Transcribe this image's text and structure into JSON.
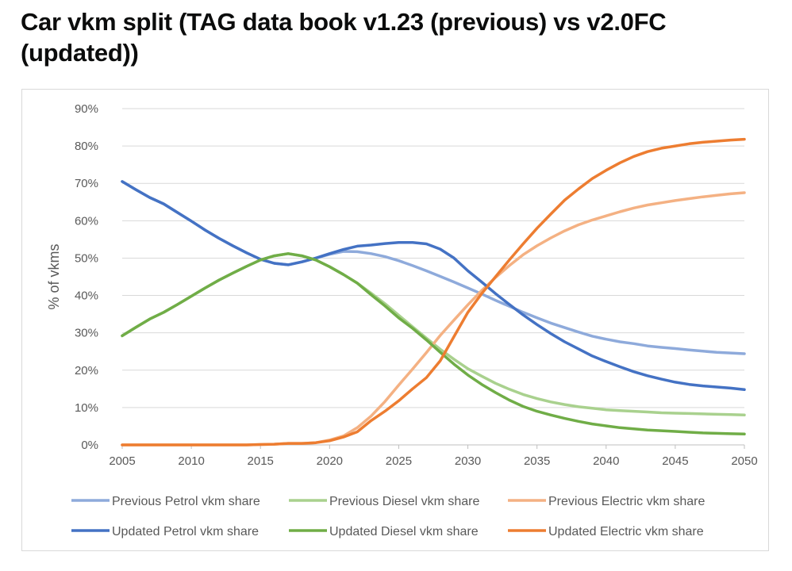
{
  "page": {
    "title": "Car vkm split (TAG data book v1.23 (previous) vs v2.0FC (updated))"
  },
  "chart_data": {
    "type": "line",
    "title": "Car vkm split (TAG data book v1.23 (previous) vs v2.0FC (updated))",
    "xlabel": "",
    "ylabel": "% of vkms",
    "xlim": [
      2005,
      2050
    ],
    "ylim": [
      0,
      90
    ],
    "x_ticks": [
      "2005",
      "2010",
      "2015",
      "2020",
      "2025",
      "2030",
      "2035",
      "2040",
      "2045",
      "2050"
    ],
    "y_ticks": [
      "0%",
      "10%",
      "20%",
      "30%",
      "40%",
      "50%",
      "60%",
      "70%",
      "80%",
      "90%"
    ],
    "grid": "horizontal",
    "legend_position": "bottom",
    "x": [
      2005,
      2006,
      2007,
      2008,
      2009,
      2010,
      2011,
      2012,
      2013,
      2014,
      2015,
      2016,
      2017,
      2018,
      2019,
      2020,
      2021,
      2022,
      2023,
      2024,
      2025,
      2026,
      2027,
      2028,
      2029,
      2030,
      2031,
      2032,
      2033,
      2034,
      2035,
      2036,
      2037,
      2038,
      2039,
      2040,
      2041,
      2042,
      2043,
      2044,
      2045,
      2046,
      2047,
      2048,
      2049,
      2050
    ],
    "series": [
      {
        "name": "Previous Petrol vkm share",
        "color": "#8eaadb",
        "width": 3.5,
        "values": [
          70.5,
          68.3,
          66.2,
          64.5,
          62.2,
          59.9,
          57.5,
          55.3,
          53.3,
          51.4,
          49.7,
          48.6,
          48.2,
          49.0,
          50.0,
          51.0,
          51.8,
          51.7,
          51.2,
          50.4,
          49.3,
          48.0,
          46.6,
          45.1,
          43.6,
          42.0,
          40.4,
          38.7,
          37.1,
          35.5,
          34.0,
          32.6,
          31.4,
          30.2,
          29.1,
          28.3,
          27.6,
          27.1,
          26.5,
          26.1,
          25.8,
          25.4,
          25.1,
          24.8,
          24.6,
          24.4
        ]
      },
      {
        "name": "Previous Diesel vkm share",
        "color": "#a9d18e",
        "width": 3.5,
        "values": [
          29.2,
          31.5,
          33.7,
          35.5,
          37.6,
          39.8,
          42.0,
          44.1,
          46.0,
          47.8,
          49.5,
          50.6,
          51.2,
          50.6,
          49.5,
          47.7,
          45.6,
          43.3,
          40.6,
          37.8,
          34.7,
          31.6,
          28.6,
          25.6,
          22.9,
          20.4,
          18.4,
          16.5,
          14.9,
          13.5,
          12.4,
          11.5,
          10.8,
          10.2,
          9.8,
          9.4,
          9.2,
          9.0,
          8.8,
          8.6,
          8.5,
          8.4,
          8.3,
          8.2,
          8.1,
          8.0
        ]
      },
      {
        "name": "Previous Electric vkm share",
        "color": "#f4b183",
        "width": 3.5,
        "values": [
          0.0,
          0.0,
          0.0,
          0.0,
          0.0,
          0.0,
          0.0,
          0.0,
          0.0,
          0.0,
          0.1,
          0.2,
          0.4,
          0.4,
          0.6,
          1.3,
          2.4,
          4.6,
          7.7,
          11.6,
          16.0,
          20.3,
          24.7,
          29.3,
          33.4,
          37.5,
          41.3,
          44.8,
          48.0,
          50.9,
          53.3,
          55.4,
          57.3,
          58.9,
          60.2,
          61.3,
          62.4,
          63.4,
          64.2,
          64.8,
          65.4,
          65.9,
          66.4,
          66.8,
          67.2,
          67.5
        ]
      },
      {
        "name": "Updated Petrol vkm share",
        "color": "#4472c4",
        "width": 3.5,
        "values": [
          70.5,
          68.3,
          66.2,
          64.5,
          62.2,
          59.9,
          57.5,
          55.3,
          53.3,
          51.4,
          49.7,
          48.6,
          48.2,
          49.0,
          50.0,
          51.2,
          52.3,
          53.2,
          53.5,
          53.9,
          54.2,
          54.2,
          53.8,
          52.4,
          50.0,
          46.6,
          43.6,
          40.5,
          37.6,
          34.8,
          32.2,
          29.8,
          27.6,
          25.7,
          23.8,
          22.3,
          20.9,
          19.6,
          18.5,
          17.6,
          16.8,
          16.2,
          15.8,
          15.5,
          15.2,
          14.8
        ]
      },
      {
        "name": "Updated Diesel vkm share",
        "color": "#70ad47",
        "width": 3.5,
        "values": [
          29.2,
          31.5,
          33.7,
          35.5,
          37.6,
          39.8,
          42.0,
          44.1,
          46.0,
          47.8,
          49.5,
          50.6,
          51.2,
          50.6,
          49.5,
          47.7,
          45.6,
          43.3,
          40.2,
          37.2,
          34.0,
          31.2,
          28.1,
          24.8,
          21.6,
          18.7,
          16.2,
          14.0,
          12.0,
          10.3,
          9.0,
          8.0,
          7.1,
          6.3,
          5.6,
          5.1,
          4.6,
          4.3,
          4.0,
          3.8,
          3.6,
          3.4,
          3.2,
          3.1,
          3.0,
          2.9
        ]
      },
      {
        "name": "Updated Electric vkm share",
        "color": "#ed7d31",
        "width": 3.5,
        "values": [
          0.0,
          0.0,
          0.0,
          0.0,
          0.0,
          0.0,
          0.0,
          0.0,
          0.0,
          0.0,
          0.1,
          0.2,
          0.4,
          0.4,
          0.6,
          1.1,
          2.1,
          3.5,
          6.5,
          9.0,
          11.8,
          15.0,
          18.0,
          22.5,
          29.0,
          35.5,
          40.5,
          45.0,
          49.5,
          53.8,
          58.0,
          61.8,
          65.5,
          68.5,
          71.3,
          73.5,
          75.5,
          77.2,
          78.5,
          79.4,
          80.0,
          80.6,
          81.0,
          81.3,
          81.6,
          81.8
        ]
      }
    ]
  }
}
